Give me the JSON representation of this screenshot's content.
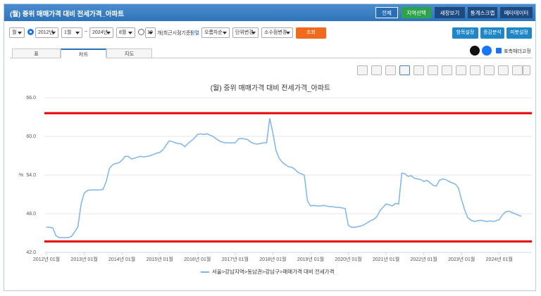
{
  "header": {
    "title": "(월) 중위 매매가격 대비 전세가격_아파트",
    "buttons": [
      "전체",
      "지역선택",
      "새창보기",
      "통계스크랩",
      "메타데이터"
    ]
  },
  "toolbar": {
    "period": "월",
    "start_year": "2012년",
    "start_month": "1월",
    "range_sep": "~",
    "end_year": "2024년",
    "end_month": "8월",
    "recent_count": "10",
    "recent_label": "개(최근시점기준)",
    "sort_label": "정렬",
    "sort": "오름차순",
    "unit": "단위변경",
    "decimal": "소수점변경",
    "query": "조회",
    "right_buttons": [
      "항목설정",
      "증감분석",
      "피봇설정"
    ]
  },
  "tabs": [
    "표",
    "차트",
    "지도"
  ],
  "share": {
    "fixed_header": "표측헤더고정"
  },
  "chart_data": {
    "type": "line",
    "title": "(월) 중위 매매가격 대비 전세가격_아파트",
    "y_label": "%",
    "categories": [
      "2012년 01월",
      null,
      null,
      null,
      null,
      null,
      null,
      null,
      null,
      null,
      null,
      null,
      "2013년 01월",
      null,
      null,
      null,
      null,
      null,
      null,
      null,
      null,
      null,
      null,
      null,
      "2014년 01월",
      null,
      null,
      null,
      null,
      null,
      null,
      null,
      null,
      null,
      null,
      null,
      "2015년 01월",
      null,
      null,
      null,
      null,
      null,
      null,
      null,
      null,
      null,
      null,
      null,
      "2016년 01월",
      null,
      null,
      null,
      null,
      null,
      null,
      null,
      null,
      null,
      null,
      null,
      "2017년 01월",
      null,
      null,
      null,
      null,
      null,
      null,
      null,
      null,
      null,
      null,
      null,
      "2018년 01월",
      null,
      null,
      null,
      null,
      null,
      null,
      null,
      null,
      null,
      null,
      null,
      "2019년 01월",
      null,
      null,
      null,
      null,
      null,
      null,
      null,
      null,
      null,
      null,
      null,
      "2020년 01월",
      null,
      null,
      null,
      null,
      null,
      null,
      null,
      null,
      null,
      null,
      null,
      "2021년 01월",
      null,
      null,
      null,
      null,
      null,
      null,
      null,
      null,
      null,
      null,
      null,
      "2022년 01월",
      null,
      null,
      null,
      null,
      null,
      null,
      null,
      null,
      null,
      null,
      null,
      "2023년 01월",
      null,
      null,
      null,
      null,
      null,
      null,
      null,
      null,
      null,
      null,
      null,
      "2024년 01월",
      null,
      null,
      null,
      null,
      null,
      null,
      null
    ],
    "series": [
      {
        "name": "서울>강남지역>동남권>강남구>매매가격 대비 전세가격",
        "color": "#7cb5ec",
        "values": [
          45.9,
          45.9,
          45.8,
          44.6,
          44.3,
          44.3,
          44.3,
          44.3,
          44.5,
          45.2,
          46.0,
          49.5,
          51.2,
          51.6,
          51.7,
          51.7,
          51.7,
          51.7,
          51.8,
          53.0,
          55.0,
          55.6,
          55.8,
          55.9,
          56.3,
          56.9,
          56.9,
          56.5,
          56.6,
          56.8,
          56.9,
          56.8,
          56.9,
          57.0,
          57.2,
          57.4,
          57.5,
          57.9,
          58.6,
          59.3,
          59.2,
          59.0,
          58.9,
          58.8,
          58.4,
          58.9,
          59.3,
          59.7,
          60.3,
          60.4,
          60.3,
          60.4,
          60.2,
          60.0,
          59.6,
          59.3,
          59.1,
          59.0,
          59.0,
          59.0,
          59.0,
          59.6,
          59.7,
          59.6,
          59.5,
          59.1,
          58.9,
          58.8,
          58.9,
          59.0,
          59.0,
          62.8,
          60.5,
          57.8,
          56.6,
          56.0,
          55.6,
          55.3,
          55.2,
          54.9,
          54.4,
          54.2,
          54.0,
          50.0,
          49.2,
          49.3,
          49.2,
          49.2,
          49.3,
          49.2,
          49.1,
          49.1,
          49.0,
          49.0,
          48.9,
          48.8,
          46.2,
          45.9,
          45.9,
          46.0,
          46.1,
          46.3,
          46.6,
          46.9,
          47.1,
          47.5,
          48.4,
          49.0,
          49.5,
          49.4,
          49.2,
          49.6,
          49.5,
          54.3,
          54.2,
          53.8,
          53.9,
          53.5,
          53.4,
          53.3,
          53.0,
          53.2,
          52.8,
          52.4,
          52.3,
          53.2,
          53.4,
          53.3,
          53.0,
          52.8,
          52.6,
          52.0,
          50.2,
          48.6,
          47.4,
          47.0,
          46.8,
          46.9,
          47.0,
          46.9,
          46.8,
          46.9,
          46.8,
          46.9,
          47.1,
          47.8,
          48.3,
          48.4,
          48.2,
          48.0,
          47.8,
          47.6
        ]
      }
    ],
    "ylim": [
      42,
      66
    ],
    "yticks": [
      {
        "value": 42,
        "label": "42.0"
      },
      {
        "value": 48,
        "label": "48.0"
      },
      {
        "value": 54,
        "label": "54.0"
      },
      {
        "value": 60,
        "label": "60.0"
      },
      {
        "value": 66,
        "label": "66.0"
      }
    ],
    "grid": true,
    "reference_lines": [
      {
        "value": 63.6,
        "color": "#e60000"
      },
      {
        "value": 43.7,
        "color": "#e60000"
      }
    ]
  }
}
